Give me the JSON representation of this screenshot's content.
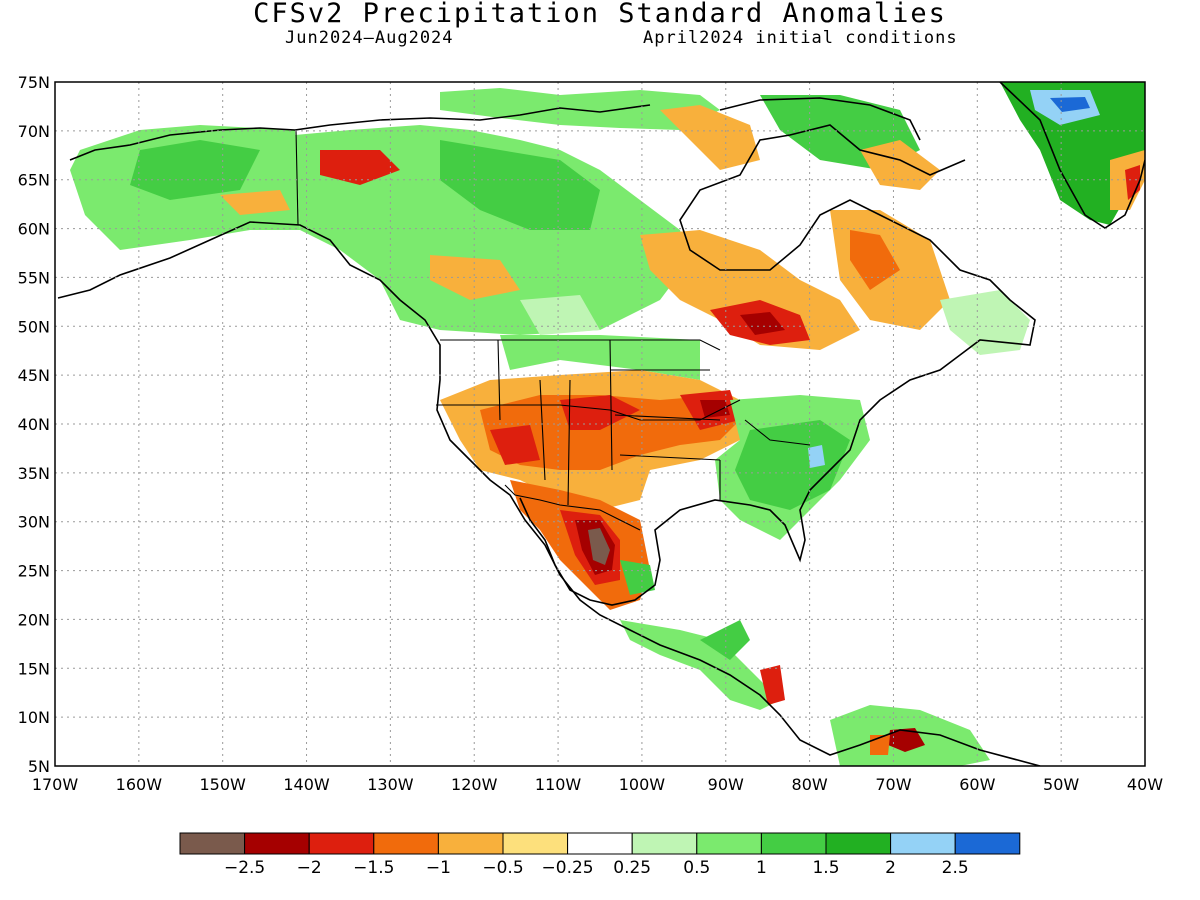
{
  "title": "CFSv2 Precipitation Standard Anomalies",
  "season": "Jun2024–Aug2024",
  "init": "April2024 initial conditions",
  "lat_labels": [
    "75N",
    "70N",
    "65N",
    "60N",
    "55N",
    "50N",
    "45N",
    "40N",
    "35N",
    "30N",
    "25N",
    "20N",
    "15N",
    "10N",
    "5N"
  ],
  "lon_labels": [
    "170W",
    "160W",
    "150W",
    "140W",
    "130W",
    "120W",
    "110W",
    "100W",
    "90W",
    "80W",
    "70W",
    "60W",
    "50W",
    "40W"
  ],
  "legend": {
    "colors": [
      "#7a5a4c",
      "#a50000",
      "#dd1f0e",
      "#f16b0c",
      "#f8b03c",
      "#fde07c",
      "#ffffff",
      "#bff5b4",
      "#7bea6e",
      "#44cd44",
      "#22b022",
      "#94d2f6",
      "#1b69d6"
    ],
    "labels": [
      "−2.5",
      "−2",
      "−1.5",
      "−1",
      "−0.5",
      "−0.25",
      "0.25",
      "0.5",
      "1",
      "1.5",
      "2",
      "2.5"
    ]
  },
  "regions": [
    {
      "name": "alaska-wet",
      "color": "#7bea6e"
    },
    {
      "name": "canada-wet",
      "color": "#44cd44"
    },
    {
      "name": "southwest-dry",
      "color": "#f16b0c"
    },
    {
      "name": "mexico-core-dry",
      "color": "#7a5a4c"
    },
    {
      "name": "southeast-wet",
      "color": "#44cd44"
    },
    {
      "name": "greenland-wet",
      "color": "#22b022"
    },
    {
      "name": "greenland-very-wet",
      "color": "#1b69d6"
    },
    {
      "name": "quebec-dry",
      "color": "#f8b03c"
    },
    {
      "name": "ontario-dry",
      "color": "#dd1f0e"
    },
    {
      "name": "central-america-wet",
      "color": "#44cd44"
    },
    {
      "name": "colombia-dry",
      "color": "#a50000"
    }
  ]
}
